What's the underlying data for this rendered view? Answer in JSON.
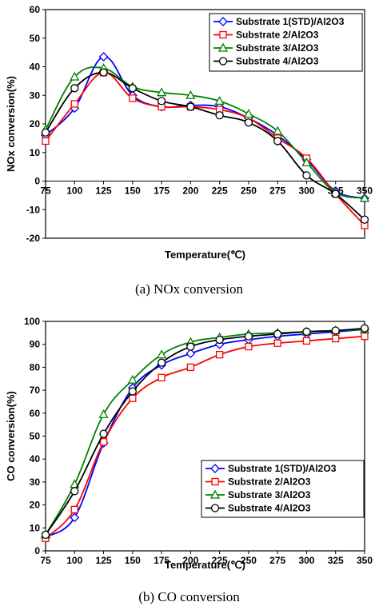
{
  "chart_data": [
    {
      "type": "line",
      "caption": "(a)  NOx  conversion",
      "xlabel": "Temperature(℃)",
      "ylabel": "NOx conversion(%)",
      "xlim": [
        75,
        350
      ],
      "ylim": [
        -20,
        60
      ],
      "x": [
        75,
        100,
        125,
        150,
        175,
        200,
        225,
        250,
        275,
        300,
        325,
        350
      ],
      "xticks": [
        "75",
        "100",
        "125",
        "150",
        "175",
        "200",
        "225",
        "250",
        "275",
        "300",
        "325",
        "350"
      ],
      "yticks": [
        "-20",
        "-10",
        "0",
        "10",
        "20",
        "30",
        "40",
        "50",
        "60"
      ],
      "legend_position": "top-right",
      "series": [
        {
          "name": "Substrate 1(STD)/Al2O3",
          "color": "#0000ff",
          "marker": "diamond",
          "values": [
            16,
            25.5,
            43.5,
            30,
            26,
            26.5,
            26,
            22,
            16,
            7.5,
            -3.5,
            -6
          ]
        },
        {
          "name": "Substrate  2/Al2O3",
          "color": "#ff0000",
          "marker": "square",
          "values": [
            14,
            27,
            38,
            29,
            26,
            26,
            25,
            22,
            15,
            8,
            -4.5,
            -15.5
          ]
        },
        {
          "name": "Substrate  3/Al2O3",
          "color": "#008000",
          "marker": "triangle",
          "values": [
            18,
            36.5,
            39.5,
            33,
            31,
            30,
            28,
            23.5,
            17.5,
            6.5,
            -4,
            -6
          ]
        },
        {
          "name": "Substrate 4/Al2O3",
          "color": "#000000",
          "marker": "circle",
          "values": [
            17,
            32.5,
            38,
            32.5,
            28,
            26,
            23,
            20.5,
            14,
            2,
            -4.5,
            -13.5
          ]
        }
      ]
    },
    {
      "type": "line",
      "caption": "(b)  CO  conversion",
      "xlabel": "Temperature(℃)",
      "ylabel": "CO conversion(%)",
      "xlim": [
        75,
        350
      ],
      "ylim": [
        0,
        100
      ],
      "x": [
        75,
        100,
        125,
        150,
        175,
        200,
        225,
        250,
        275,
        300,
        325,
        350
      ],
      "xticks": [
        "75",
        "100",
        "125",
        "150",
        "175",
        "200",
        "225",
        "250",
        "275",
        "300",
        "325",
        "350"
      ],
      "yticks": [
        "0",
        "10",
        "20",
        "30",
        "40",
        "50",
        "60",
        "70",
        "80",
        "90",
        "100"
      ],
      "legend_position": "bottom-right",
      "series": [
        {
          "name": "Substrate 1(STD)/Al2O3",
          "color": "#0000ff",
          "marker": "diamond",
          "values": [
            6,
            14.5,
            47,
            71,
            81,
            86,
            90,
            92,
            93.5,
            94.5,
            95.5,
            96.5
          ]
        },
        {
          "name": "Substrate  2/Al2O3",
          "color": "#ff0000",
          "marker": "square",
          "values": [
            5.5,
            18,
            47.5,
            66.5,
            75.5,
            80,
            85.5,
            89,
            90.5,
            91.5,
            92.5,
            93.5
          ]
        },
        {
          "name": "Substrate  3/Al2O3",
          "color": "#008000",
          "marker": "triangle",
          "values": [
            7,
            29,
            59.5,
            74.5,
            85.5,
            91,
            93,
            94.5,
            95,
            95.5,
            96,
            96.5
          ]
        },
        {
          "name": "Substrate 4/Al2O3",
          "color": "#000000",
          "marker": "circle",
          "values": [
            7,
            26,
            51,
            69.5,
            82,
            89,
            92,
            93.5,
            94.5,
            95.5,
            96,
            97
          ]
        }
      ]
    }
  ]
}
